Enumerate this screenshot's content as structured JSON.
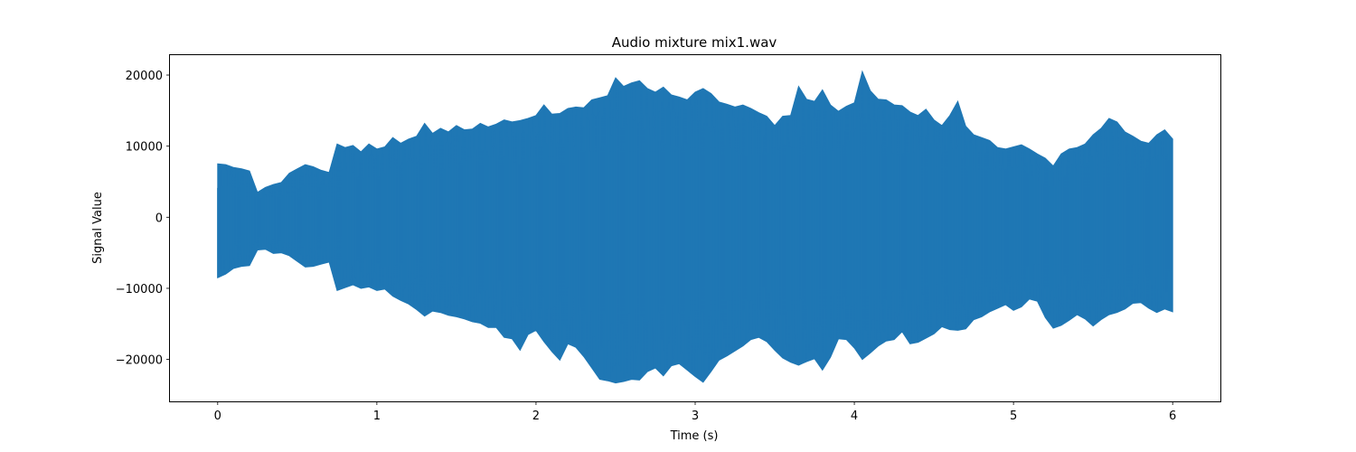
{
  "chart_data": {
    "type": "line",
    "title": "Audio mixture mix1.wav",
    "xlabel": "Time (s)",
    "ylabel": "Signal Value",
    "xlim": [
      -0.3,
      6.3
    ],
    "ylim": [
      -25900,
      22800
    ],
    "xticks": [
      0,
      1,
      2,
      3,
      4,
      5,
      6
    ],
    "xtick_labels": [
      "0",
      "1",
      "2",
      "3",
      "4",
      "5",
      "6"
    ],
    "yticks": [
      -20000,
      -10000,
      0,
      10000,
      20000
    ],
    "ytick_labels": [
      "−20000",
      "−10000",
      "0",
      "10000",
      "20000"
    ],
    "grid": false,
    "series_color": "#1f77b4",
    "series": [
      {
        "x": [
          0,
          0.05,
          0.1,
          0.15,
          0.2,
          0.25,
          0.3,
          0.35,
          0.4,
          0.45,
          0.5,
          0.55,
          0.6,
          0.65,
          0.7,
          0.75,
          0.8,
          0.85,
          0.9,
          0.95,
          1.0,
          1.05,
          1.1,
          1.15,
          1.2,
          1.25,
          1.3,
          1.35,
          1.4,
          1.45,
          1.5,
          1.55,
          1.6,
          1.65,
          1.7,
          1.75,
          1.8,
          1.85,
          1.9,
          1.95,
          2.0,
          2.05,
          2.1,
          2.15,
          2.2,
          2.25,
          2.3,
          2.35,
          2.4,
          2.45,
          2.5,
          2.55,
          2.6,
          2.65,
          2.7,
          2.75,
          2.8,
          2.85,
          2.9,
          2.95,
          3.0,
          3.05,
          3.1,
          3.15,
          3.2,
          3.25,
          3.3,
          3.35,
          3.4,
          3.45,
          3.5,
          3.55,
          3.6,
          3.65,
          3.7,
          3.75,
          3.8,
          3.85,
          3.9,
          3.95,
          4.0,
          4.05,
          4.1,
          4.15,
          4.2,
          4.25,
          4.3,
          4.35,
          4.4,
          4.45,
          4.5,
          4.55,
          4.6,
          4.65,
          4.7,
          4.75,
          4.8,
          4.85,
          4.9,
          4.95,
          5.0,
          5.05,
          5.1,
          5.15,
          5.2,
          5.25,
          5.3,
          5.35,
          5.4,
          5.45,
          5.5,
          5.55,
          5.6,
          5.65,
          5.7,
          5.75,
          5.8,
          5.85,
          5.9,
          5.95,
          6.0
        ],
        "upper": [
          7500,
          7400,
          7000,
          6800,
          6500,
          3500,
          4200,
          4600,
          4900,
          6200,
          6800,
          7400,
          7100,
          6600,
          6300,
          10300,
          9800,
          10100,
          9200,
          10300,
          9600,
          9900,
          11200,
          10400,
          11000,
          11400,
          13200,
          11800,
          12500,
          12000,
          12900,
          12300,
          12400,
          13200,
          12700,
          13100,
          13700,
          13400,
          13600,
          13900,
          14300,
          15800,
          14500,
          14600,
          15300,
          15500,
          15400,
          16500,
          16800,
          17100,
          19600,
          18400,
          18900,
          19200,
          18100,
          17600,
          18300,
          17200,
          16900,
          16500,
          17600,
          18100,
          17400,
          16200,
          15900,
          15500,
          15800,
          15300,
          14700,
          14200,
          12900,
          14200,
          14300,
          18400,
          16600,
          16300,
          17900,
          15800,
          14900,
          15600,
          16100,
          20500,
          17800,
          16600,
          16500,
          15800,
          15700,
          14800,
          14300,
          15200,
          13700,
          12900,
          14300,
          16300,
          12800,
          11600,
          11200,
          10800,
          9800,
          9600,
          9900,
          10200,
          9600,
          8900,
          8300,
          7200,
          8900,
          9600,
          9800,
          10300,
          11600,
          12500,
          13900,
          13400,
          12000,
          11400,
          10700,
          10400,
          11600,
          12300,
          11000
        ],
        "lower": [
          -8500,
          -8000,
          -7200,
          -6900,
          -6800,
          -4600,
          -4500,
          -5100,
          -5000,
          -5400,
          -6200,
          -7000,
          -6900,
          -6600,
          -6300,
          -10300,
          -9900,
          -9500,
          -10000,
          -9800,
          -10300,
          -10100,
          -11100,
          -11700,
          -12200,
          -13000,
          -13900,
          -13200,
          -13400,
          -13800,
          -14000,
          -14300,
          -14700,
          -14900,
          -15500,
          -15500,
          -16900,
          -17100,
          -18700,
          -16500,
          -15900,
          -17500,
          -18900,
          -20100,
          -17800,
          -18300,
          -19600,
          -21200,
          -22800,
          -23000,
          -23300,
          -23100,
          -22800,
          -22900,
          -21700,
          -21200,
          -22300,
          -20900,
          -20600,
          -21500,
          -22400,
          -23200,
          -21700,
          -20100,
          -19500,
          -18800,
          -18100,
          -17200,
          -16900,
          -17500,
          -18700,
          -19800,
          -20400,
          -20800,
          -20300,
          -19900,
          -21500,
          -19700,
          -17100,
          -17200,
          -18400,
          -20000,
          -19100,
          -18100,
          -17400,
          -17200,
          -16100,
          -17800,
          -17600,
          -17000,
          -16400,
          -15400,
          -15800,
          -15900,
          -15700,
          -14400,
          -14000,
          -13300,
          -12800,
          -12300,
          -13100,
          -12600,
          -11500,
          -11800,
          -14100,
          -15600,
          -15200,
          -14500,
          -13700,
          -14300,
          -15300,
          -14400,
          -13700,
          -13400,
          -12900,
          -12100,
          -12000,
          -12800,
          -13400,
          -12900,
          -13300
        ]
      }
    ]
  }
}
